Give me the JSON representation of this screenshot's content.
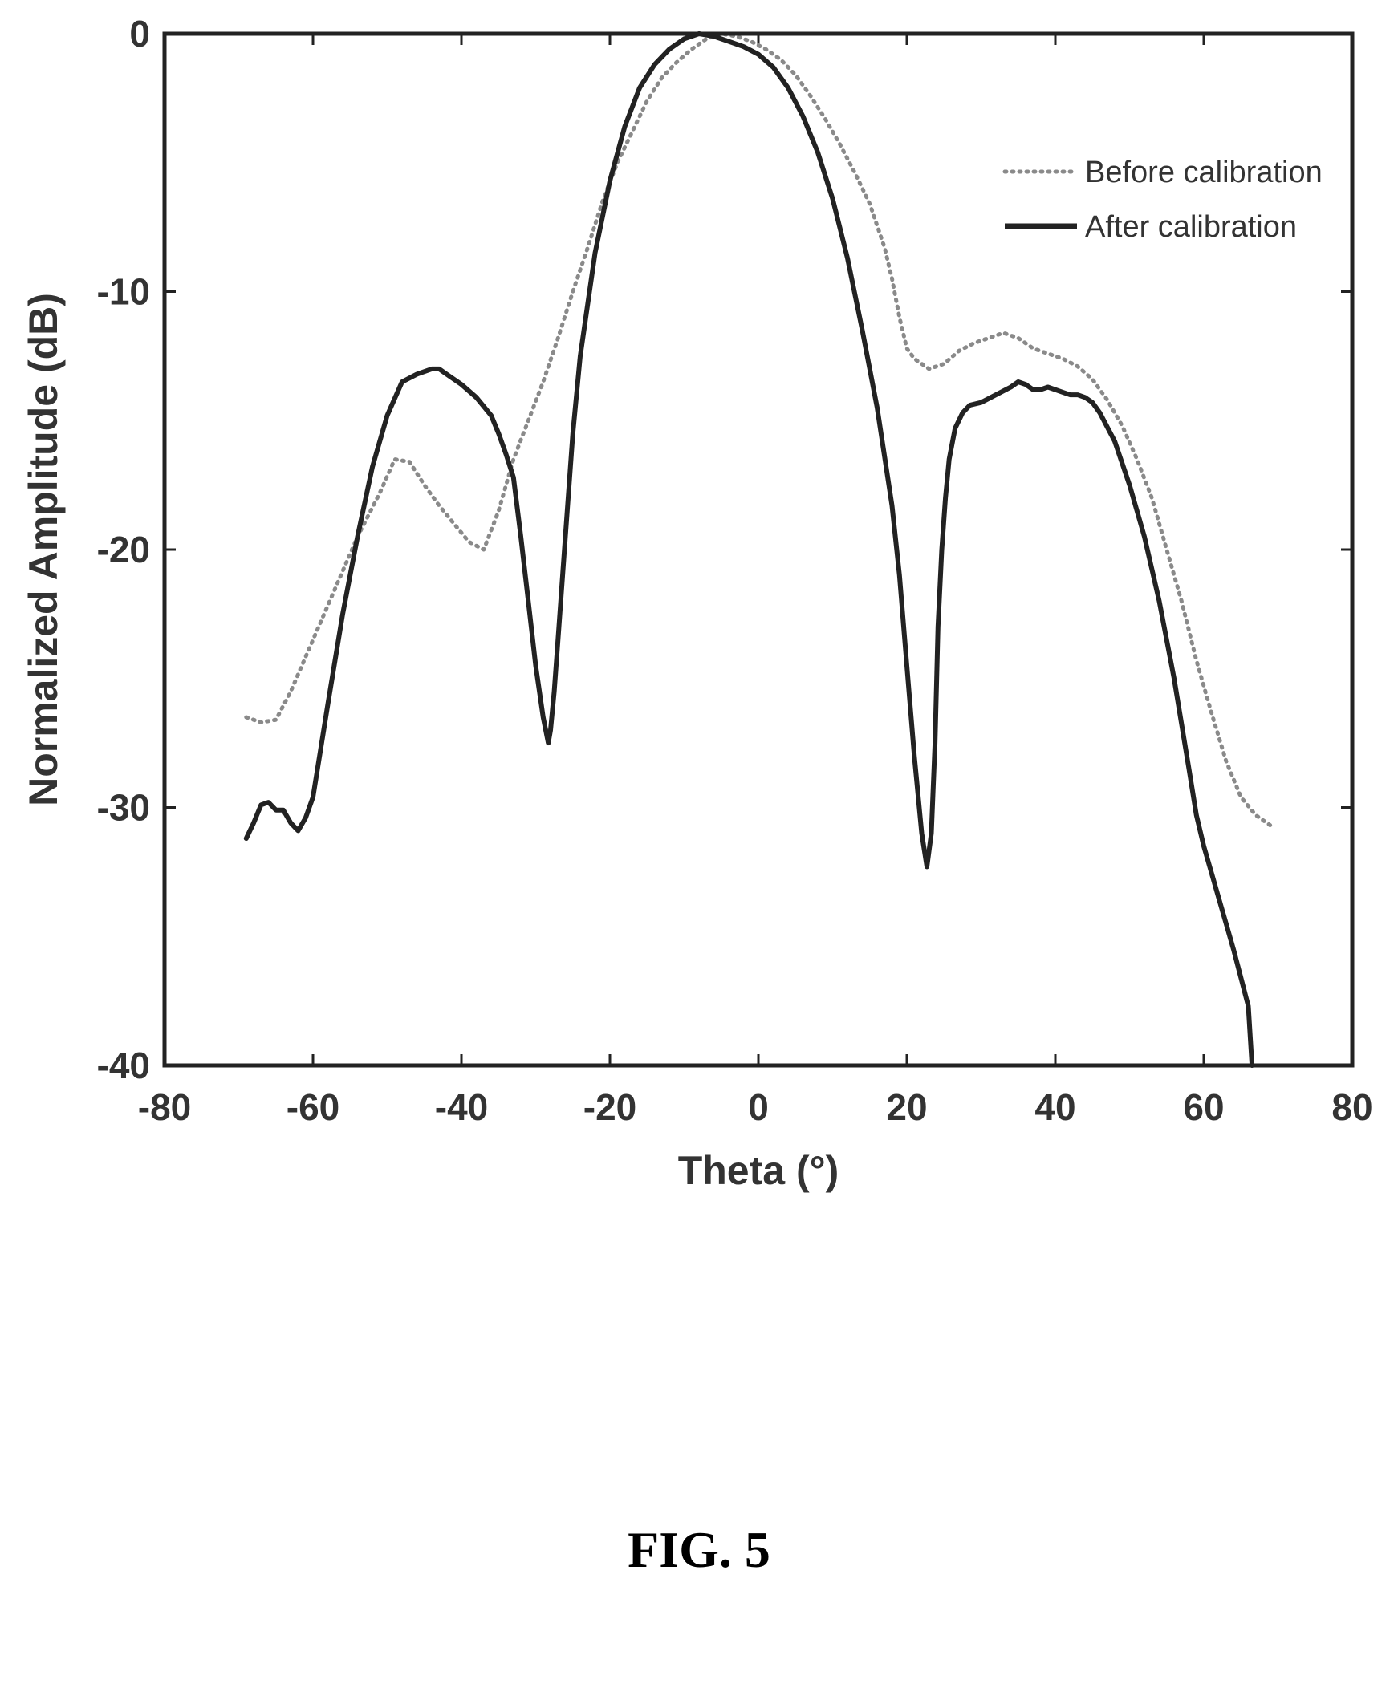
{
  "figure_label": "FIG. 5",
  "chart_data": {
    "type": "line",
    "title": "",
    "xlabel": "Theta (°)",
    "ylabel": "Normalized Amplitude (dB)",
    "xlim": [
      -80,
      80
    ],
    "ylim": [
      -40,
      0
    ],
    "xticks": [
      "-80",
      "-60",
      "-40",
      "-20",
      "0",
      "20",
      "40",
      "60",
      "80"
    ],
    "yticks": [
      "0",
      "-10",
      "-20",
      "-30",
      "-40"
    ],
    "grid": false,
    "legend_position": "top-right",
    "series": [
      {
        "name": "Before calibration",
        "style": "dotted",
        "color": "#8a8a8a",
        "x": [
          -69,
          -67,
          -65,
          -63,
          -60,
          -57,
          -54,
          -51,
          -49,
          -47,
          -45,
          -43,
          -41,
          -39,
          -37,
          -35,
          -33,
          -31,
          -29,
          -27,
          -25,
          -23,
          -21,
          -19,
          -17,
          -15,
          -13,
          -11,
          -9,
          -7,
          -5,
          -3,
          -1,
          1,
          3,
          5,
          7,
          9,
          11,
          13,
          15,
          17,
          18,
          19,
          20,
          21,
          23,
          25,
          27,
          29,
          31,
          33,
          35,
          37,
          39,
          41,
          43,
          45,
          47,
          49,
          51,
          53,
          55,
          57,
          59,
          61,
          63,
          65,
          67,
          69
        ],
        "y": [
          -26.5,
          -26.7,
          -26.6,
          -25.5,
          -23.5,
          -21.5,
          -19.5,
          -17.8,
          -16.5,
          -16.6,
          -17.5,
          -18.3,
          -19.0,
          -19.7,
          -20.0,
          -18.5,
          -16.5,
          -15.0,
          -13.5,
          -11.8,
          -10.0,
          -8.3,
          -6.5,
          -5.0,
          -3.8,
          -2.6,
          -1.7,
          -1.1,
          -0.6,
          -0.2,
          0.0,
          -0.1,
          -0.3,
          -0.6,
          -1.0,
          -1.6,
          -2.4,
          -3.3,
          -4.3,
          -5.4,
          -6.6,
          -8.3,
          -9.5,
          -11.0,
          -12.2,
          -12.6,
          -13.0,
          -12.8,
          -12.3,
          -12.0,
          -11.8,
          -11.6,
          -11.8,
          -12.2,
          -12.4,
          -12.6,
          -12.9,
          -13.4,
          -14.2,
          -15.2,
          -16.5,
          -18.0,
          -20.0,
          -22.0,
          -24.3,
          -26.3,
          -28.2,
          -29.6,
          -30.3,
          -30.7
        ]
      },
      {
        "name": "After calibration",
        "style": "solid",
        "color": "#222222",
        "x": [
          -69,
          -68,
          -67,
          -66,
          -65,
          -64,
          -63,
          -62,
          -61,
          -60,
          -58,
          -56,
          -54,
          -52,
          -50,
          -48,
          -46,
          -44,
          -43,
          -42,
          -40,
          -38,
          -36,
          -35,
          -34,
          -33,
          -32,
          -31,
          -30,
          -29,
          -28.3,
          -28,
          -27.5,
          -27,
          -26,
          -25,
          -24,
          -22,
          -20,
          -18,
          -16,
          -14,
          -12,
          -10,
          -8,
          -6,
          -4,
          -2,
          0,
          2,
          4,
          6,
          8,
          10,
          12,
          14,
          16,
          18,
          19,
          20,
          21,
          22,
          22.7,
          23.3,
          23.8,
          24.2,
          24.7,
          25.2,
          25.7,
          26.5,
          27.5,
          28.5,
          30,
          32,
          34,
          35,
          36,
          37,
          38,
          39,
          40,
          41,
          42,
          43,
          44,
          45,
          46,
          48,
          50,
          52,
          54,
          56,
          58,
          59,
          60,
          61,
          62,
          63,
          64,
          65,
          66,
          66.5
        ],
        "y": [
          -31.2,
          -30.6,
          -29.9,
          -29.8,
          -30.1,
          -30.1,
          -30.6,
          -30.9,
          -30.4,
          -29.6,
          -26.0,
          -22.5,
          -19.5,
          -16.8,
          -14.8,
          -13.5,
          -13.2,
          -13.0,
          -13.0,
          -13.2,
          -13.6,
          -14.1,
          -14.8,
          -15.5,
          -16.3,
          -17.2,
          -19.5,
          -22.0,
          -24.5,
          -26.5,
          -27.5,
          -27.0,
          -25.5,
          -23.5,
          -19.5,
          -15.5,
          -12.5,
          -8.5,
          -5.7,
          -3.6,
          -2.1,
          -1.2,
          -0.6,
          -0.2,
          0.0,
          -0.1,
          -0.3,
          -0.5,
          -0.8,
          -1.3,
          -2.1,
          -3.2,
          -4.6,
          -6.4,
          -8.7,
          -11.5,
          -14.5,
          -18.3,
          -21.0,
          -24.5,
          -28.0,
          -31.0,
          -32.3,
          -31.0,
          -27.5,
          -23.0,
          -20.0,
          -18.0,
          -16.5,
          -15.3,
          -14.7,
          -14.4,
          -14.3,
          -14.0,
          -13.7,
          -13.5,
          -13.6,
          -13.8,
          -13.8,
          -13.7,
          -13.8,
          -13.9,
          -14.0,
          -14.0,
          -14.1,
          -14.3,
          -14.7,
          -15.8,
          -17.5,
          -19.5,
          -22.0,
          -25.0,
          -28.5,
          -30.3,
          -31.5,
          -32.5,
          -33.5,
          -34.5,
          -35.5,
          -36.6,
          -37.7,
          -40.0
        ]
      }
    ]
  }
}
